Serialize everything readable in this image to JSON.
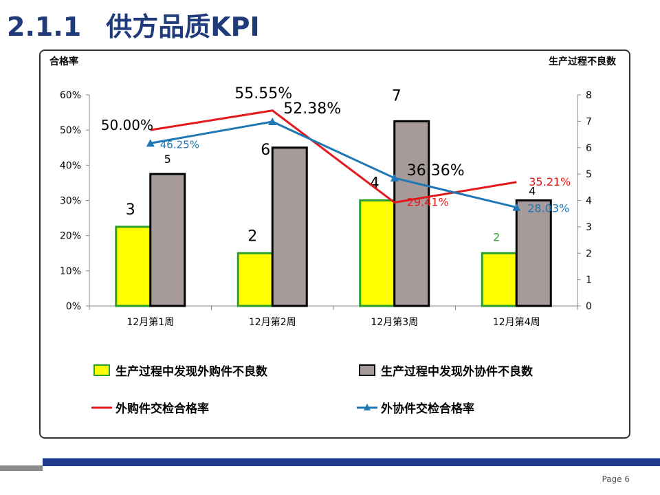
{
  "slide": {
    "section_number": "2.1.1",
    "title": "供方品质KPI",
    "page_label": "Page 6"
  },
  "colors": {
    "title": "#1f3b7a",
    "bar_purchased": "#ffff00",
    "bar_purchased_border": "#2ca02c",
    "bar_outsourced": "#a79a9a",
    "bar_outsourced_border": "#000000",
    "line_purchased": "#e3191c",
    "line_outsourced": "#1f77b4",
    "footer_band": "#1f3a8c"
  },
  "chart_data": {
    "type": "bar",
    "categories": [
      "12月第1周",
      "12月第2周",
      "12月第3周",
      "12月第4周"
    ],
    "ylabel_left": "合格率",
    "ylabel_right": "生产过程不良数",
    "ylim_left": [
      0,
      60
    ],
    "yticks_left": [
      "0%",
      "10%",
      "20%",
      "30%",
      "40%",
      "50%",
      "60%"
    ],
    "ylim_right": [
      0,
      8
    ],
    "yticks_right": [
      "0",
      "1",
      "2",
      "3",
      "4",
      "5",
      "6",
      "7",
      "8"
    ],
    "grid": false,
    "legend_placement": "bottom",
    "series": [
      {
        "name": "生产过程中发现外购件不良数",
        "type": "bar",
        "axis": "right",
        "values": [
          3,
          2,
          4,
          2
        ],
        "labels": [
          "3",
          "2",
          "4",
          "2"
        ]
      },
      {
        "name": "生产过程中发现外协件不良数",
        "type": "bar",
        "axis": "right",
        "values": [
          5,
          6,
          7,
          4
        ],
        "labels": [
          "5",
          "6",
          "7",
          "4"
        ]
      },
      {
        "name": "外购件交检合格率",
        "type": "line",
        "axis": "left",
        "values": [
          50.0,
          55.55,
          29.41,
          35.21
        ],
        "labels": [
          "50.00%",
          "55.55%",
          "29.41%",
          "35.21%"
        ]
      },
      {
        "name": "外协件交检合格率",
        "type": "line",
        "marker": "triangle",
        "axis": "left",
        "values": [
          46.25,
          52.38,
          36.36,
          28.03
        ],
        "labels": [
          "46.25%",
          "52.38%",
          "36.36%",
          "28.03%"
        ]
      }
    ]
  }
}
